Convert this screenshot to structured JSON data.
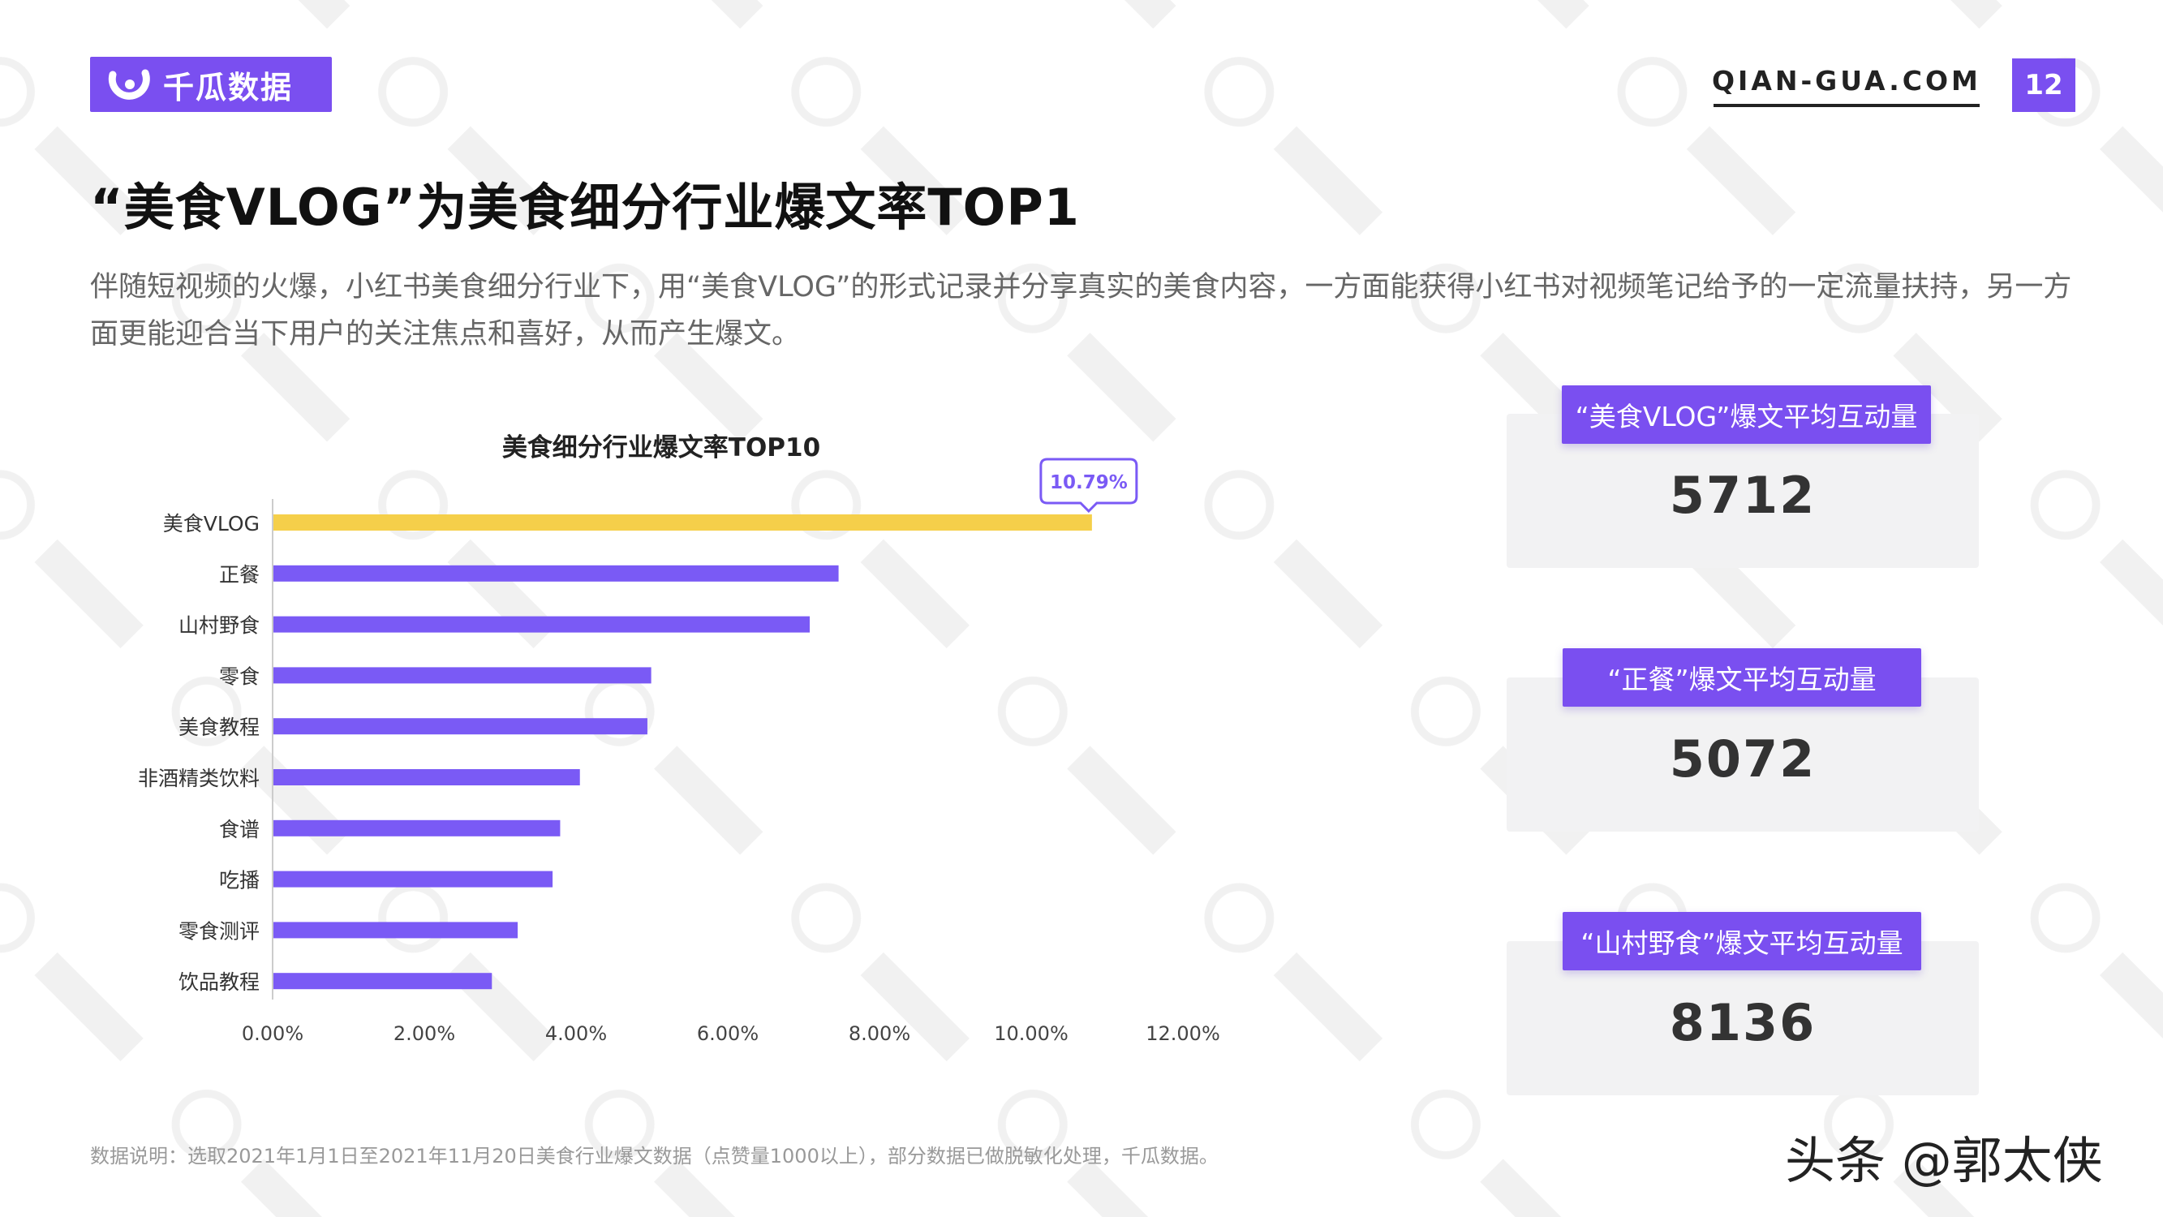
{
  "brand": {
    "name": "千瓜数据",
    "color": "#7a4ff0"
  },
  "header": {
    "site": "QIAN-GUA.COM",
    "page_number": "12"
  },
  "title": "“美食VLOG”为美食细分行业爆文率TOP1",
  "subtitle": "伴随短视频的火爆，小红书美食细分行业下，用“美食VLOG”的形式记录并分享真实的美食内容，一方面能获得小红书对视频笔记给予的一定流量扶持，另一方面更能迎合当下用户的关注焦点和喜好，从而产生爆文。",
  "chart_data": {
    "type": "bar",
    "orientation": "horizontal",
    "title": "美食细分行业爆文率TOP10",
    "categories": [
      "美食VLOG",
      "正餐",
      "山村野食",
      "零食",
      "美食教程",
      "非酒精类饮料",
      "食谱",
      "吃播",
      "零食测评",
      "饮品教程"
    ],
    "values": [
      10.79,
      7.45,
      7.07,
      4.98,
      4.93,
      4.04,
      3.78,
      3.68,
      3.22,
      2.88
    ],
    "unit": "%",
    "xlim": [
      0,
      12
    ],
    "xticks": [
      "0.00%",
      "2.00%",
      "4.00%",
      "6.00%",
      "8.00%",
      "10.00%",
      "12.00%"
    ],
    "xtick_values": [
      0,
      2,
      4,
      6,
      8,
      10,
      12
    ],
    "highlight_index": 0,
    "highlight_label": "10.79%",
    "colors": {
      "bar": "#7a5af5",
      "highlight": "#f5cf4a",
      "axis": "#cccccc",
      "text": "#333333",
      "tick": "#444444"
    },
    "grid": false
  },
  "cards": [
    {
      "label": "“美食VLOG”爆文平均互动量",
      "value": "5712"
    },
    {
      "label": "“正餐”爆文平均互动量",
      "value": "5072"
    },
    {
      "label": "“山村野食”爆文平均互动量",
      "value": "8136"
    }
  ],
  "footnote": "数据说明：选取2021年1月1日至2021年11月20日美食行业爆文数据（点赞量1000以上），部分数据已做脱敏化处理，千瓜数据。",
  "credit": "头条 @郭太侠"
}
